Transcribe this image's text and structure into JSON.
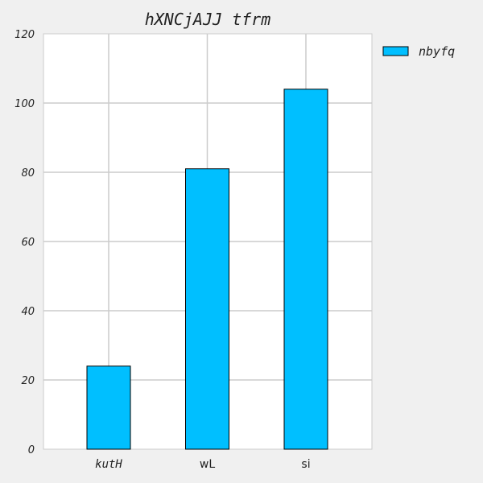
{
  "chart_data": {
    "type": "bar",
    "title": "hXNCjAJJ tfrm",
    "categories": [
      "kutH",
      "wL",
      "si"
    ],
    "series": [
      {
        "name": "nbyfq",
        "values": [
          24,
          81,
          104
        ],
        "color": "#00bfff"
      }
    ],
    "xlabel": "",
    "ylabel": "",
    "ylim": [
      0,
      120
    ],
    "yticks": [
      "0",
      "20",
      "40",
      "60",
      "80",
      "100",
      "120"
    ],
    "grid": true,
    "legend_position": "outside-top-right",
    "colors": {
      "background": "#f0f0f0",
      "plot_background": "#ffffff",
      "grid": "#cccccc",
      "bar_edge": "#000000"
    }
  }
}
